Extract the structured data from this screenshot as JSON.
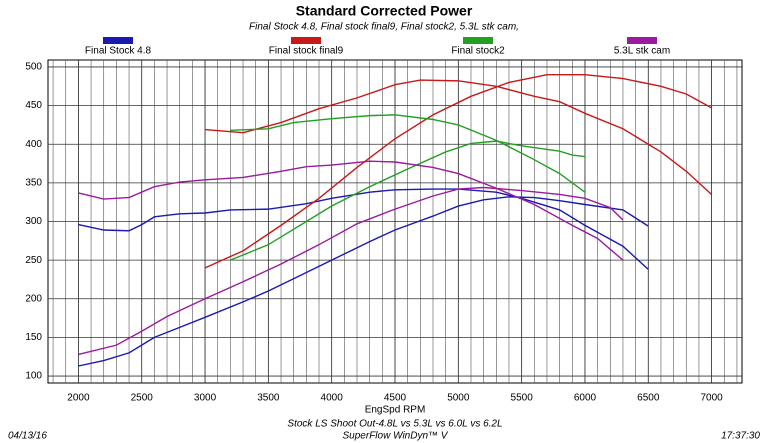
{
  "chart_data": {
    "type": "line",
    "title": "Standard Corrected Power",
    "subtitle": "Final Stock 4.8, Final stock final9, Final stock2, 5.3L stk cam,",
    "x_label": "EngSpd RPM",
    "footer": [
      "Stock LS Shoot Out-4.8L vs 5.3L vs 6.0L vs 6.2L",
      "SuperFlow WinDyn™ V"
    ],
    "date": "04/13/16",
    "time": "17:37:30",
    "xlim": [
      1760,
      7240
    ],
    "ylim": [
      91,
      509
    ],
    "xticks": [
      2000,
      2500,
      3000,
      3500,
      4000,
      4500,
      5000,
      5500,
      6000,
      6500,
      7000
    ],
    "yticks": [
      100,
      150,
      200,
      250,
      300,
      350,
      400,
      450,
      500
    ],
    "grid": true,
    "x_minor_grid_step": 100,
    "series": [
      {
        "name": "Final Stock 4.8",
        "color": "#1a1ab0",
        "curves": [
          {
            "x": [
              2000,
              2200,
              2400,
              2500,
              2600,
              2800,
              3000,
              3200,
              3500,
              3800,
              4000,
              4300,
              4500,
              4800,
              5000,
              5300,
              5500,
              5800,
              6000,
              6300,
              6500
            ],
            "values": [
              296,
              289,
              288,
              296,
              306,
              310,
              311,
              315,
              316,
              323,
              330,
              338,
              341,
              342,
              342,
              338,
              330,
              315,
              295,
              268,
              238
            ]
          },
          {
            "x": [
              2000,
              2200,
              2400,
              2600,
              2800,
              3000,
              3300,
              3500,
              3800,
              4000,
              4300,
              4500,
              4800,
              5000,
              5200,
              5400,
              5600,
              5800,
              6000,
              6300,
              6500
            ],
            "values": [
              113,
              120,
              130,
              150,
              163,
              176,
              196,
              210,
              234,
              250,
              274,
              289,
              307,
              320,
              328,
              332,
              331,
              327,
              322,
              315,
              294
            ]
          }
        ]
      },
      {
        "name": "Final stock final9",
        "color": "#c81818",
        "curves": [
          {
            "x": [
              3000,
              3300,
              3600,
              3900,
              4200,
              4500,
              4700,
              5000,
              5300,
              5600,
              5800,
              6000,
              6300,
              6600,
              6800,
              7000
            ],
            "values": [
              419,
              415,
              428,
              446,
              460,
              477,
              483,
              482,
              475,
              462,
              455,
              440,
              420,
              390,
              365,
              335
            ]
          },
          {
            "x": [
              3000,
              3300,
              3600,
              3900,
              4200,
              4500,
              4800,
              5100,
              5400,
              5700,
              6000,
              6300,
              6600,
              6800,
              7000
            ],
            "values": [
              240,
              262,
              295,
              330,
              370,
              407,
              438,
              462,
              480,
              490,
              490,
              485,
              475,
              465,
              447
            ]
          }
        ]
      },
      {
        "name": "Final stock2",
        "color": "#22a022",
        "curves": [
          {
            "x": [
              3200,
              3500,
              3700,
              4000,
              4300,
              4500,
              4800,
              5000,
              5300,
              5600,
              5800,
              6000
            ],
            "values": [
              418,
              420,
              428,
              433,
              437,
              438,
              432,
              425,
              405,
              380,
              362,
              338
            ]
          },
          {
            "x": [
              3200,
              3500,
              3800,
              4000,
              4300,
              4600,
              4900,
              5100,
              5300,
              5500,
              5800,
              5900,
              6000
            ],
            "values": [
              250,
              270,
              300,
              320,
              345,
              368,
              390,
              401,
              404,
              398,
              391,
              386,
              384
            ]
          }
        ]
      },
      {
        "name": "5.3L stk cam",
        "color": "#9a1aa0",
        "curves": [
          {
            "x": [
              2000,
              2200,
              2400,
              2600,
              2800,
              3000,
              3300,
              3600,
              3800,
              4000,
              4300,
              4500,
              4800,
              5000,
              5300,
              5600,
              5900,
              6100,
              6300
            ],
            "values": [
              337,
              329,
              331,
              345,
              351,
              354,
              357,
              365,
              371,
              373,
              378,
              377,
              370,
              362,
              343,
              322,
              295,
              278,
              250
            ]
          },
          {
            "x": [
              2000,
              2300,
              2500,
              2700,
              3000,
              3300,
              3600,
              3900,
              4200,
              4500,
              4800,
              5000,
              5200,
              5500,
              5800,
              6000,
              6200,
              6300
            ],
            "values": [
              128,
              140,
              158,
              177,
              200,
              222,
              245,
              270,
              297,
              316,
              333,
              342,
              344,
              340,
              335,
              330,
              318,
              302
            ]
          }
        ]
      }
    ]
  }
}
